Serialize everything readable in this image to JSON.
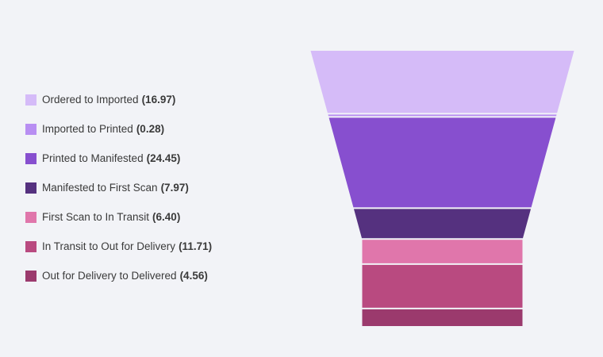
{
  "chart_data": {
    "type": "funnel",
    "legend_position": "left",
    "series": [
      {
        "name": "Ordered to Imported",
        "value": 16.97,
        "value_label": "(16.97)",
        "color": "#d5bbf8"
      },
      {
        "name": "Imported to Printed",
        "value": 0.28,
        "value_label": "(0.28)",
        "color": "#b88ef2"
      },
      {
        "name": "Printed to Manifested",
        "value": 24.45,
        "value_label": "(24.45)",
        "color": "#874fcf"
      },
      {
        "name": "Manifested to First Scan",
        "value": 7.97,
        "value_label": "(7.97)",
        "color": "#55317f"
      },
      {
        "name": "First Scan to In Transit",
        "value": 6.4,
        "value_label": "(6.40)",
        "color": "#e076ab"
      },
      {
        "name": "In Transit to Out for Delivery",
        "value": 11.71,
        "value_label": "(11.71)",
        "color": "#b94a80"
      },
      {
        "name": "Out for Delivery to Delivered",
        "value": 4.56,
        "value_label": "(4.56)",
        "color": "#9b3a6d"
      }
    ]
  }
}
